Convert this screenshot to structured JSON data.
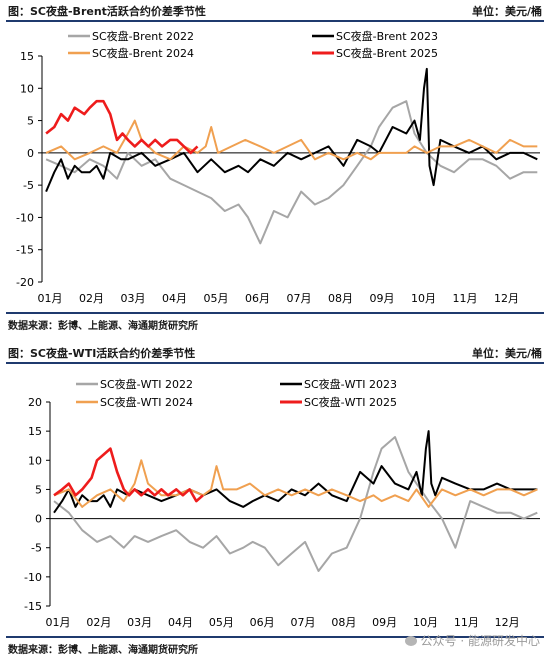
{
  "colors": {
    "s2022": "#a6a6a6",
    "s2023": "#000000",
    "s2024": "#f0a050",
    "s2025": "#ee1c1c",
    "rule": "#1f3a6e"
  },
  "panels": [
    {
      "title": "图：SC夜盘-Brent活跃合约价差季节性",
      "unit": "单位：美元/桶",
      "source": "数据来源：彭博、上能源、海通期货研究所"
    },
    {
      "title": "图：SC夜盘-WTI活跃合约价差季节性",
      "unit": "单位：美元/桶",
      "source": "数据来源：彭博、上能源、海通期货研究所"
    }
  ],
  "watermark": "公众号 · 能源研发中心",
  "chart_data": [
    {
      "type": "line",
      "legend_position": "top",
      "grid": false,
      "x_ticks": [
        "01月",
        "02月",
        "03月",
        "04月",
        "05月",
        "06月",
        "07月",
        "08月",
        "09月",
        "10月",
        "11月",
        "12月"
      ],
      "ylim": [
        -20,
        15
      ],
      "y_ticks": [
        15,
        10,
        5,
        0,
        -5,
        -10,
        -15,
        -20
      ],
      "series": [
        {
          "name": "SC夜盘-Brent 2022",
          "key": "s2022",
          "x": [
            "01-04",
            "01-15",
            "01-25",
            "02-05",
            "02-15",
            "02-25",
            "03-05",
            "03-15",
            "03-25",
            "04-05",
            "04-15",
            "04-25",
            "05-05",
            "05-15",
            "05-25",
            "06-01",
            "06-10",
            "06-20",
            "06-30",
            "07-10",
            "07-20",
            "07-30",
            "08-10",
            "08-20",
            "08-30",
            "09-05",
            "09-15",
            "09-25",
            "10-01",
            "10-10",
            "10-20",
            "10-30",
            "11-10",
            "11-20",
            "11-30",
            "12-10",
            "12-20",
            "12-30"
          ],
          "values": [
            -1,
            -2,
            -3,
            -1,
            -2,
            -4,
            0,
            -2,
            -1,
            -4,
            -5,
            -6,
            -7,
            -9,
            -8,
            -10,
            -14,
            -9,
            -10,
            -6,
            -8,
            -7,
            -5,
            -2,
            1,
            4,
            7,
            8,
            3,
            0,
            -2,
            -3,
            -1,
            -1,
            -2,
            -4,
            -3,
            -3
          ]
        },
        {
          "name": "SC夜盘-Brent 2023",
          "key": "s2023",
          "x": [
            "01-04",
            "01-10",
            "01-15",
            "01-20",
            "01-25",
            "01-30",
            "02-05",
            "02-10",
            "02-15",
            "02-20",
            "02-28",
            "03-05",
            "03-15",
            "03-25",
            "04-05",
            "04-15",
            "04-25",
            "05-05",
            "05-15",
            "05-25",
            "06-01",
            "06-10",
            "06-20",
            "06-30",
            "07-10",
            "07-20",
            "07-30",
            "08-10",
            "08-20",
            "08-30",
            "09-05",
            "09-15",
            "09-25",
            "10-01",
            "10-05",
            "10-08",
            "10-10",
            "10-12",
            "10-15",
            "10-20",
            "10-30",
            "11-10",
            "11-20",
            "11-30",
            "12-10",
            "12-20",
            "12-30"
          ],
          "values": [
            -6,
            -3,
            -1,
            -4,
            -2,
            -3,
            -3,
            -2,
            -4,
            0,
            -1,
            -1,
            0,
            -2,
            -1,
            0,
            -3,
            -1,
            -3,
            -2,
            -3,
            -1,
            -2,
            0,
            -1,
            0,
            1,
            -2,
            2,
            1,
            0,
            4,
            3,
            5,
            2,
            10,
            13,
            -2,
            -5,
            2,
            1,
            0,
            1,
            -1,
            0,
            0,
            -1
          ]
        },
        {
          "name": "SC夜盘-Brent 2024",
          "key": "s2024",
          "x": [
            "01-04",
            "01-15",
            "01-25",
            "02-05",
            "02-15",
            "02-25",
            "03-05",
            "03-10",
            "03-15",
            "03-20",
            "03-25",
            "04-05",
            "04-15",
            "04-25",
            "05-01",
            "05-05",
            "05-10",
            "05-20",
            "05-30",
            "06-10",
            "06-20",
            "06-30",
            "07-10",
            "07-20",
            "07-30",
            "08-10",
            "08-20",
            "08-30",
            "09-05",
            "09-15",
            "09-25",
            "10-01",
            "10-10",
            "10-20",
            "10-30",
            "11-10",
            "11-20",
            "11-30",
            "12-10",
            "12-20",
            "12-30"
          ],
          "values": [
            0,
            1,
            -1,
            0,
            1,
            0,
            3,
            5,
            2,
            1,
            0,
            -1,
            1,
            0,
            1,
            4,
            0,
            1,
            2,
            1,
            0,
            1,
            2,
            -1,
            0,
            -1,
            0,
            -1,
            0,
            0,
            0,
            1,
            0,
            1,
            1,
            2,
            1,
            0,
            2,
            1,
            1
          ]
        },
        {
          "name": "SC夜盘-Brent 2025",
          "key": "s2025",
          "x": [
            "01-04",
            "01-10",
            "01-15",
            "01-20",
            "01-25",
            "02-01",
            "02-05",
            "02-10",
            "02-15",
            "02-20",
            "02-25",
            "03-01",
            "03-05",
            "03-10",
            "03-15",
            "03-20",
            "03-25",
            "03-30",
            "04-05",
            "04-10",
            "04-15",
            "04-20",
            "04-25"
          ],
          "values": [
            3,
            4,
            6,
            5,
            7,
            6,
            7,
            8,
            8,
            6,
            2,
            3,
            2,
            1,
            2,
            1,
            2,
            1,
            2,
            2,
            1,
            0,
            1
          ]
        }
      ]
    },
    {
      "type": "line",
      "legend_position": "top",
      "grid": false,
      "x_ticks": [
        "01月",
        "02月",
        "03月",
        "04月",
        "05月",
        "06月",
        "07月",
        "08月",
        "09月",
        "10月",
        "11月",
        "12月"
      ],
      "ylim": [
        -15,
        20
      ],
      "y_ticks": [
        20,
        15,
        10,
        5,
        0,
        -5,
        -10,
        -15
      ],
      "series": [
        {
          "name": "SC夜盘-WTI 2022",
          "key": "s2022",
          "x": [
            "01-04",
            "01-15",
            "01-25",
            "02-05",
            "02-15",
            "02-25",
            "03-05",
            "03-15",
            "03-25",
            "04-05",
            "04-15",
            "04-25",
            "05-05",
            "05-15",
            "05-25",
            "06-01",
            "06-10",
            "06-20",
            "06-30",
            "07-10",
            "07-20",
            "07-30",
            "08-10",
            "08-20",
            "08-30",
            "09-05",
            "09-15",
            "09-25",
            "10-01",
            "10-10",
            "10-20",
            "10-30",
            "11-10",
            "11-20",
            "11-30",
            "12-10",
            "12-20",
            "12-30"
          ],
          "values": [
            3,
            1,
            -2,
            -4,
            -3,
            -5,
            -3,
            -4,
            -3,
            -2,
            -4,
            -5,
            -3,
            -6,
            -5,
            -4,
            -5,
            -8,
            -6,
            -4,
            -9,
            -6,
            -5,
            0,
            8,
            12,
            14,
            8,
            6,
            3,
            0,
            -5,
            3,
            2,
            1,
            1,
            0,
            1
          ]
        },
        {
          "name": "SC夜盘-WTI 2023",
          "key": "s2023",
          "x": [
            "01-04",
            "01-10",
            "01-15",
            "01-20",
            "01-25",
            "01-30",
            "02-05",
            "02-10",
            "02-15",
            "02-20",
            "02-28",
            "03-05",
            "03-15",
            "03-25",
            "04-05",
            "04-15",
            "04-25",
            "05-05",
            "05-15",
            "05-25",
            "06-01",
            "06-10",
            "06-20",
            "06-30",
            "07-10",
            "07-20",
            "07-30",
            "08-10",
            "08-20",
            "08-30",
            "09-05",
            "09-15",
            "09-25",
            "10-01",
            "10-05",
            "10-08",
            "10-10",
            "10-12",
            "10-15",
            "10-20",
            "10-30",
            "11-10",
            "11-20",
            "11-30",
            "12-10",
            "12-20",
            "12-30"
          ],
          "values": [
            1,
            3,
            5,
            2,
            4,
            3,
            3,
            4,
            2,
            5,
            4,
            5,
            4,
            3,
            4,
            5,
            4,
            5,
            3,
            2,
            3,
            4,
            3,
            5,
            4,
            6,
            4,
            3,
            8,
            6,
            9,
            6,
            5,
            8,
            4,
            12,
            15,
            6,
            4,
            7,
            6,
            5,
            5,
            6,
            5,
            5,
            5
          ]
        },
        {
          "name": "SC夜盘-WTI 2024",
          "key": "s2024",
          "x": [
            "01-04",
            "01-15",
            "01-25",
            "02-05",
            "02-15",
            "02-25",
            "03-05",
            "03-10",
            "03-15",
            "03-20",
            "03-25",
            "04-05",
            "04-15",
            "04-25",
            "05-01",
            "05-05",
            "05-10",
            "05-20",
            "05-30",
            "06-10",
            "06-20",
            "06-30",
            "07-10",
            "07-20",
            "07-30",
            "08-10",
            "08-20",
            "08-30",
            "09-05",
            "09-15",
            "09-25",
            "10-01",
            "10-10",
            "10-20",
            "10-30",
            "11-10",
            "11-20",
            "11-30",
            "12-10",
            "12-20",
            "12-30"
          ],
          "values": [
            4,
            5,
            2,
            4,
            5,
            3,
            6,
            10,
            6,
            5,
            4,
            4,
            5,
            4,
            5,
            9,
            5,
            5,
            6,
            4,
            5,
            4,
            5,
            4,
            5,
            4,
            3,
            4,
            3,
            4,
            3,
            5,
            2,
            5,
            4,
            5,
            4,
            5,
            5,
            4,
            5
          ]
        },
        {
          "name": "SC夜盘-WTI 2025",
          "key": "s2025",
          "x": [
            "01-04",
            "01-10",
            "01-15",
            "01-20",
            "01-25",
            "02-01",
            "02-05",
            "02-10",
            "02-15",
            "02-20",
            "02-25",
            "03-01",
            "03-05",
            "03-10",
            "03-15",
            "03-20",
            "03-25",
            "03-30",
            "04-05",
            "04-10",
            "04-15",
            "04-20",
            "04-25"
          ],
          "values": [
            4,
            5,
            6,
            4,
            5,
            7,
            10,
            11,
            12,
            8,
            5,
            4,
            5,
            4,
            5,
            4,
            5,
            4,
            5,
            4,
            5,
            3,
            4
          ]
        }
      ]
    }
  ]
}
